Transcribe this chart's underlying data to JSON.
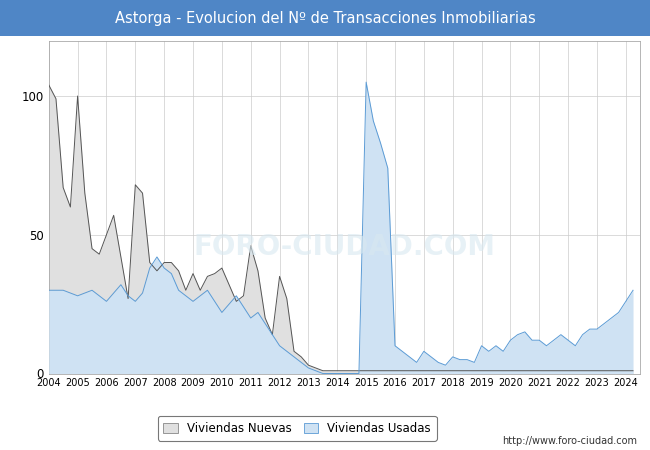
{
  "title": "Astorga - Evolucion del Nº de Transacciones Inmobiliarias",
  "title_bg": "#4f86c6",
  "title_color": "white",
  "ylim": [
    0,
    120
  ],
  "yticks": [
    0,
    50,
    100
  ],
  "footer_text": "http://www.foro-ciudad.com",
  "legend_labels": [
    "Viviendas Nuevas",
    "Viviendas Usadas"
  ],
  "nuevas_line_color": "#555555",
  "usadas_line_color": "#5b9bd5",
  "nuevas_fill_color": "#e0e0e0",
  "usadas_fill_color": "#cfe2f3",
  "nuevas": [
    104,
    99,
    67,
    60,
    100,
    65,
    45,
    43,
    50,
    57,
    42,
    27,
    68,
    65,
    40,
    37,
    40,
    40,
    37,
    30,
    36,
    30,
    35,
    36,
    38,
    32,
    26,
    28,
    46,
    37,
    20,
    14,
    35,
    27,
    8,
    6,
    3,
    2,
    1,
    1,
    1,
    1,
    1,
    1,
    1,
    1,
    1,
    1,
    1,
    1,
    1,
    1,
    1,
    1,
    1,
    1,
    1,
    1,
    1,
    1,
    1,
    1,
    1,
    1,
    1,
    1,
    1,
    1,
    1,
    1,
    1,
    1,
    1,
    1,
    1,
    1,
    1,
    1,
    1,
    1,
    1,
    1
  ],
  "usadas": [
    30,
    30,
    30,
    29,
    28,
    29,
    30,
    28,
    26,
    29,
    32,
    28,
    26,
    29,
    38,
    42,
    38,
    36,
    30,
    28,
    26,
    28,
    30,
    26,
    22,
    25,
    28,
    24,
    20,
    22,
    18,
    14,
    10,
    8,
    6,
    4,
    2,
    1,
    0,
    0,
    0,
    0,
    0,
    0,
    105,
    91,
    83,
    74,
    10,
    8,
    6,
    4,
    8,
    6,
    4,
    3,
    6,
    5,
    5,
    4,
    10,
    8,
    10,
    8,
    12,
    14,
    15,
    12,
    12,
    10,
    12,
    14,
    12,
    10,
    14,
    16,
    16,
    18,
    20,
    22,
    26,
    30
  ],
  "n_quarters": 82
}
